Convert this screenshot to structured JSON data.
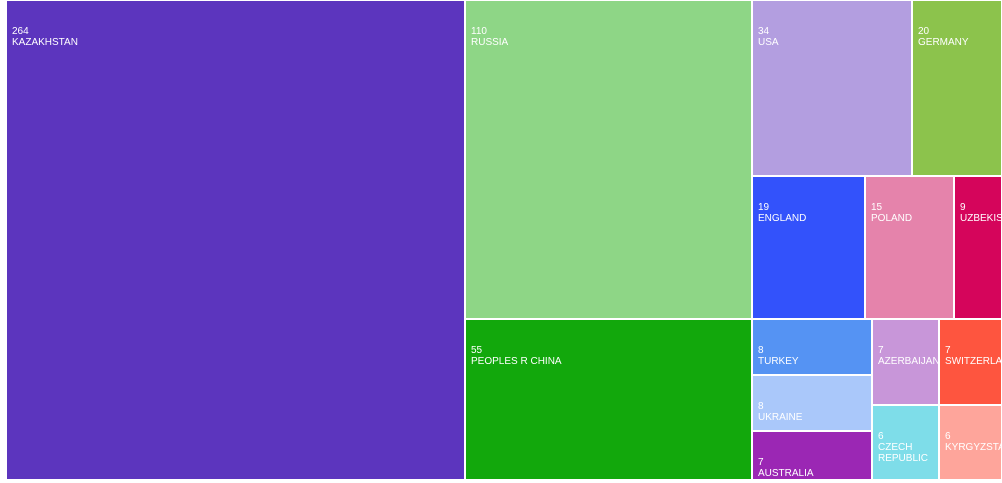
{
  "chart_data": {
    "type": "treemap",
    "nodes": [
      {
        "label": "KAZAKHSTAN",
        "value": 264,
        "color": "#5c35be"
      },
      {
        "label": "RUSSIA",
        "value": 110,
        "color": "#8ed686"
      },
      {
        "label": "PEOPLES R CHINA",
        "value": 55,
        "color": "#12a80c"
      },
      {
        "label": "USA",
        "value": 34,
        "color": "#b39ee0"
      },
      {
        "label": "GERMANY",
        "value": 20,
        "color": "#8cc34c"
      },
      {
        "label": "ENGLAND",
        "value": 19,
        "color": "#3352fb"
      },
      {
        "label": "POLAND",
        "value": 15,
        "color": "#e583ab"
      },
      {
        "label": "UZBEKISTAN",
        "value": 9,
        "color": "#d5055b"
      },
      {
        "label": "TURKEY",
        "value": 8,
        "color": "#5593f3"
      },
      {
        "label": "UKRAINE",
        "value": 8,
        "color": "#aac8fa"
      },
      {
        "label": "AUSTRALIA",
        "value": 7,
        "color": "#9b27b4"
      },
      {
        "label": "AZERBAIJAN",
        "value": 7,
        "color": "#c896d9"
      },
      {
        "label": "SWITZERLAND",
        "value": 7,
        "color": "#fe553f"
      },
      {
        "label": "CZECH REPUBLIC",
        "value": 6,
        "color": "#7edde9"
      },
      {
        "label": "KYRGYZSTAN",
        "value": 6,
        "color": "#fea59b"
      }
    ]
  }
}
